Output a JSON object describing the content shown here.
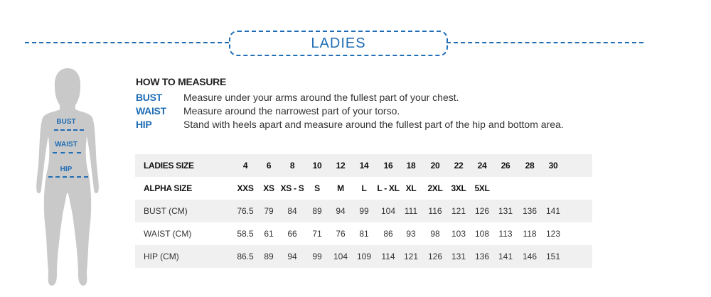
{
  "title": "LADIES",
  "figure_labels": [
    "BUST",
    "WAIST",
    "HIP"
  ],
  "how_to_measure": {
    "heading": "HOW TO MEASURE",
    "items": [
      {
        "key": "BUST",
        "text": "Measure under your arms around the fullest part of your chest."
      },
      {
        "key": "WAIST",
        "text": "Measure around the narrowest part of your torso."
      },
      {
        "key": "HIP",
        "text": "Stand with heels apart and measure around the fullest part of the hip and bottom area."
      }
    ]
  },
  "table": {
    "rows": [
      {
        "label": "LADIES SIZE",
        "bold": true,
        "values": [
          "4",
          "6",
          "8",
          "10",
          "12",
          "14",
          "16",
          "18",
          "20",
          "22",
          "24",
          "26",
          "28",
          "30"
        ]
      },
      {
        "label": "ALPHA SIZE",
        "bold": true,
        "values": [
          "XXS",
          "XS",
          "XS - S",
          "S",
          "M",
          "L",
          "L - XL",
          "XL",
          "2XL",
          "3XL",
          "5XL",
          "",
          "",
          ""
        ]
      },
      {
        "label": "BUST (CM)",
        "bold": false,
        "values": [
          "76.5",
          "79",
          "84",
          "89",
          "94",
          "99",
          "104",
          "111",
          "116",
          "121",
          "126",
          "131",
          "136",
          "141"
        ]
      },
      {
        "label": "WAIST (CM)",
        "bold": false,
        "values": [
          "58.5",
          "61",
          "66",
          "71",
          "76",
          "81",
          "86",
          "93",
          "98",
          "103",
          "108",
          "113",
          "118",
          "123"
        ]
      },
      {
        "label": "HIP (CM)",
        "bold": false,
        "values": [
          "86.5",
          "89",
          "94",
          "99",
          "104",
          "109",
          "114",
          "121",
          "126",
          "131",
          "136",
          "141",
          "146",
          "151"
        ]
      }
    ]
  },
  "colors": {
    "accent": "#1f6db5",
    "silhouette": "#c9c9c9",
    "row_shade": "#f0f0f0"
  }
}
